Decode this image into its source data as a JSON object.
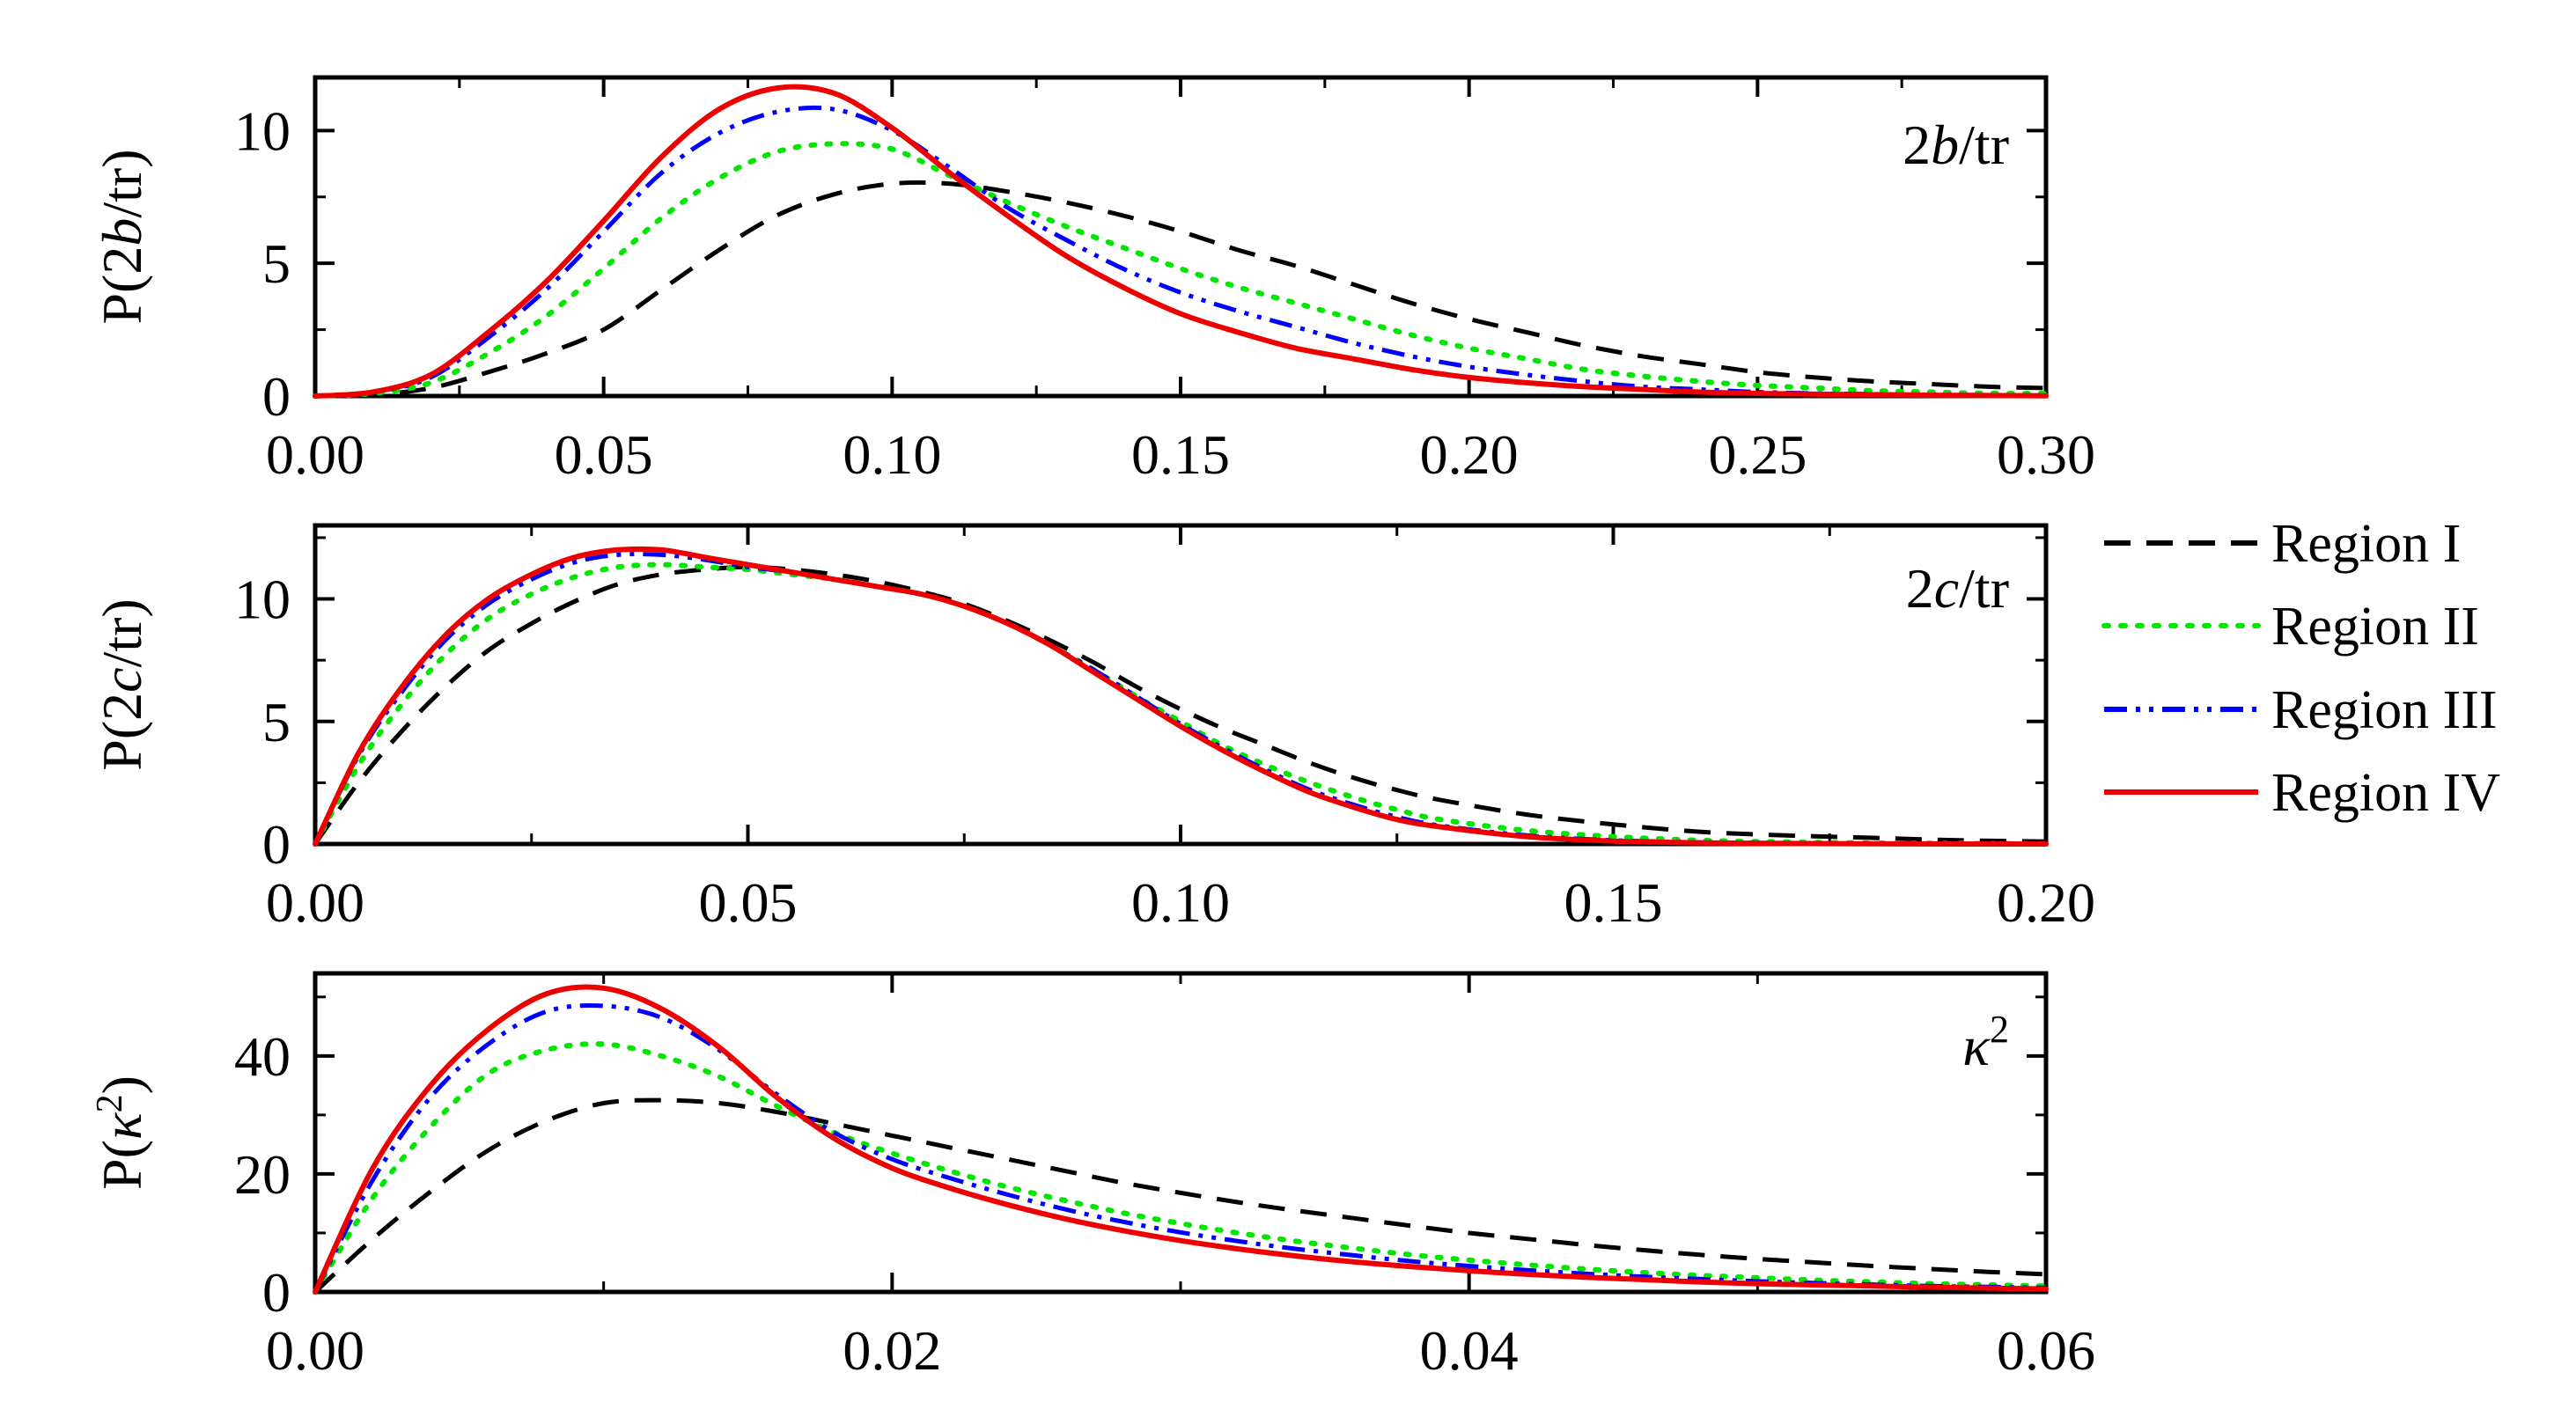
{
  "chart_data": [
    {
      "type": "line",
      "panel": "top",
      "ylabel": "P(2b/tr)",
      "tag": "2b/tr",
      "xlim": [
        0,
        0.3
      ],
      "ylim": [
        0,
        12
      ],
      "xticks": [
        0,
        0.05,
        0.1,
        0.15,
        0.2,
        0.25,
        0.3
      ],
      "xtick_labels": [
        "0.00",
        "0.05",
        "0.10",
        "0.15",
        "0.20",
        "0.25",
        "0.30"
      ],
      "yticks": [
        0,
        5,
        10
      ],
      "ytick_labels": [
        "0",
        "5",
        "10"
      ],
      "x": [
        0,
        0.01,
        0.02,
        0.03,
        0.04,
        0.05,
        0.06,
        0.07,
        0.08,
        0.09,
        0.1,
        0.11,
        0.12,
        0.13,
        0.14,
        0.15,
        0.16,
        0.17,
        0.18,
        0.19,
        0.2,
        0.21,
        0.22,
        0.23,
        0.24,
        0.25,
        0.26,
        0.27,
        0.28,
        0.29,
        0.3
      ],
      "series": [
        {
          "name": "Region I",
          "values": [
            0,
            0.05,
            0.3,
            0.9,
            1.6,
            2.5,
            4.0,
            5.5,
            6.8,
            7.6,
            8.0,
            8.0,
            7.7,
            7.3,
            6.8,
            6.2,
            5.5,
            4.9,
            4.2,
            3.5,
            2.9,
            2.4,
            1.9,
            1.5,
            1.2,
            0.9,
            0.7,
            0.55,
            0.45,
            0.35,
            0.3
          ]
        },
        {
          "name": "Region II",
          "values": [
            0,
            0.1,
            0.5,
            1.6,
            3.0,
            4.8,
            6.7,
            8.2,
            9.2,
            9.5,
            9.3,
            8.3,
            7.3,
            6.4,
            5.6,
            4.8,
            4.1,
            3.5,
            2.9,
            2.3,
            1.8,
            1.4,
            1.0,
            0.75,
            0.55,
            0.4,
            0.3,
            0.2,
            0.15,
            0.1,
            0.1
          ]
        },
        {
          "name": "Region III",
          "values": [
            0,
            0.15,
            0.7,
            2.2,
            4.0,
            6.2,
            8.4,
            9.9,
            10.7,
            10.8,
            10.0,
            8.6,
            7.1,
            5.9,
            4.8,
            3.9,
            3.2,
            2.6,
            2.0,
            1.5,
            1.1,
            0.8,
            0.55,
            0.35,
            0.25,
            0.15,
            0.1,
            0.07,
            0.05,
            0.03,
            0.02
          ]
        },
        {
          "name": "Region IV",
          "values": [
            0,
            0.15,
            0.8,
            2.4,
            4.3,
            6.6,
            9.0,
            10.8,
            11.6,
            11.4,
            10.1,
            8.4,
            6.8,
            5.3,
            4.1,
            3.1,
            2.4,
            1.8,
            1.4,
            1.0,
            0.7,
            0.5,
            0.35,
            0.25,
            0.15,
            0.1,
            0.07,
            0.05,
            0.03,
            0.02,
            0.01
          ]
        }
      ]
    },
    {
      "type": "line",
      "panel": "middle",
      "ylabel": "P(2c/tr)",
      "tag": "2c/tr",
      "xlim": [
        0,
        0.2
      ],
      "ylim": [
        0,
        13
      ],
      "xticks": [
        0,
        0.05,
        0.1,
        0.15,
        0.2
      ],
      "xtick_labels": [
        "0.00",
        "0.05",
        "0.10",
        "0.15",
        "0.20"
      ],
      "yticks": [
        0,
        5,
        10
      ],
      "ytick_labels": [
        "0",
        "5",
        "10"
      ],
      "x": [
        0,
        0.005,
        0.01,
        0.015,
        0.02,
        0.025,
        0.03,
        0.035,
        0.04,
        0.045,
        0.05,
        0.055,
        0.06,
        0.065,
        0.07,
        0.075,
        0.08,
        0.085,
        0.09,
        0.095,
        0.1,
        0.105,
        0.11,
        0.115,
        0.12,
        0.125,
        0.13,
        0.14,
        0.15,
        0.16,
        0.17,
        0.18,
        0.19,
        0.2
      ],
      "series": [
        {
          "name": "Region I",
          "values": [
            0,
            2.5,
            4.6,
            6.4,
            7.9,
            9.0,
            9.9,
            10.6,
            11.0,
            11.2,
            11.3,
            11.2,
            11.0,
            10.7,
            10.3,
            9.8,
            9.1,
            8.3,
            7.4,
            6.4,
            5.5,
            4.7,
            4.0,
            3.3,
            2.7,
            2.2,
            1.8,
            1.2,
            0.8,
            0.5,
            0.35,
            0.25,
            0.15,
            0.1
          ]
        },
        {
          "name": "Region II",
          "values": [
            0,
            3.2,
            5.7,
            7.7,
            9.2,
            10.2,
            10.9,
            11.3,
            11.4,
            11.3,
            11.2,
            11.0,
            10.8,
            10.5,
            10.2,
            9.7,
            9.0,
            8.1,
            7.1,
            6.0,
            5.0,
            4.0,
            3.2,
            2.5,
            1.9,
            1.4,
            1.0,
            0.55,
            0.3,
            0.15,
            0.08,
            0.04,
            0.02,
            0.01
          ]
        },
        {
          "name": "Region III",
          "values": [
            0,
            3.6,
            6.2,
            8.3,
            9.8,
            10.8,
            11.5,
            11.8,
            11.8,
            11.6,
            11.3,
            11.1,
            10.8,
            10.5,
            10.2,
            9.7,
            9.0,
            8.1,
            7.1,
            6.0,
            4.9,
            3.9,
            3.0,
            2.2,
            1.6,
            1.1,
            0.75,
            0.35,
            0.15,
            0.07,
            0.03,
            0.01,
            0.01,
            0
          ]
        },
        {
          "name": "Region IV",
          "values": [
            0,
            3.7,
            6.4,
            8.5,
            10.0,
            11.0,
            11.7,
            12.0,
            12.0,
            11.7,
            11.4,
            11.1,
            10.8,
            10.5,
            10.2,
            9.7,
            9.0,
            8.1,
            7.0,
            5.9,
            4.8,
            3.8,
            2.9,
            2.1,
            1.5,
            1.0,
            0.7,
            0.3,
            0.12,
            0.05,
            0.02,
            0.01,
            0,
            0
          ]
        }
      ]
    },
    {
      "type": "line",
      "panel": "bottom",
      "ylabel": "P(κ²)",
      "tag": "κ²",
      "xlim": [
        0,
        0.06
      ],
      "ylim": [
        0,
        54
      ],
      "xticks": [
        0,
        0.02,
        0.04,
        0.06
      ],
      "xtick_labels": [
        "0.00",
        "0.02",
        "0.04",
        "0.06"
      ],
      "yticks": [
        0,
        20,
        40
      ],
      "ytick_labels": [
        "0",
        "20",
        "40"
      ],
      "x": [
        0,
        0.002,
        0.004,
        0.006,
        0.008,
        0.01,
        0.012,
        0.014,
        0.016,
        0.018,
        0.02,
        0.022,
        0.024,
        0.026,
        0.028,
        0.03,
        0.032,
        0.034,
        0.036,
        0.038,
        0.04,
        0.042,
        0.044,
        0.046,
        0.048,
        0.05,
        0.052,
        0.054,
        0.056,
        0.058,
        0.06
      ],
      "series": [
        {
          "name": "Region I",
          "values": [
            0,
            9,
            17,
            24,
            29,
            32,
            32.5,
            32,
            30.5,
            28.5,
            26.5,
            24.5,
            22.5,
            20.5,
            18.5,
            16.8,
            15.2,
            13.8,
            12.5,
            11.2,
            10.0,
            9.0,
            8.0,
            7.1,
            6.3,
            5.6,
            5.0,
            4.4,
            3.9,
            3.4,
            3.0
          ]
        },
        {
          "name": "Region II",
          "values": [
            0,
            16,
            28,
            37,
            41,
            42,
            40,
            36.5,
            31.5,
            27,
            23.5,
            20.5,
            17.8,
            15.5,
            13.4,
            11.6,
            10.0,
            8.6,
            7.4,
            6.3,
            5.4,
            4.6,
            3.9,
            3.3,
            2.8,
            2.4,
            2.0,
            1.7,
            1.4,
            1.2,
            1.0
          ]
        },
        {
          "name": "Region III",
          "values": [
            0,
            19,
            33,
            42,
            47.5,
            48.5,
            46.5,
            41,
            33.5,
            27,
            22.5,
            19.3,
            16.5,
            14.0,
            11.9,
            10.1,
            8.6,
            7.3,
            6.2,
            5.2,
            4.4,
            3.7,
            3.1,
            2.6,
            2.2,
            1.8,
            1.5,
            1.25,
            1.0,
            0.85,
            0.7
          ]
        },
        {
          "name": "Region IV",
          "values": [
            0,
            21,
            35,
            44.5,
            50.5,
            51.5,
            48,
            41.5,
            33,
            26,
            21,
            17.6,
            14.8,
            12.4,
            10.4,
            8.7,
            7.3,
            6.1,
            5.1,
            4.3,
            3.6,
            3.0,
            2.5,
            2.1,
            1.7,
            1.4,
            1.2,
            1.0,
            0.8,
            0.65,
            0.5
          ]
        }
      ]
    }
  ],
  "legend": [
    {
      "name": "Region I",
      "label": "Region I",
      "color": "#000000",
      "dash": "dashed"
    },
    {
      "name": "Region II",
      "label": "Region II",
      "color": "#00e600",
      "dash": "dotted"
    },
    {
      "name": "Region III",
      "label": "Region III",
      "color": "#0000ff",
      "dash": "dash-dot-dot"
    },
    {
      "name": "Region IV",
      "label": "Region IV",
      "color": "#ee0000",
      "dash": "solid"
    }
  ],
  "panel_tags": {
    "top": {
      "prefix": "2",
      "italic": "b",
      "suffix": "/tr"
    },
    "middle": {
      "prefix": "2",
      "italic": "c",
      "suffix": "/tr"
    },
    "bottom": {
      "italic": "κ",
      "sup": "2"
    }
  },
  "ylabels": {
    "top": {
      "prefix": "P(2",
      "italic": "b",
      "suffix": "/tr)"
    },
    "middle": {
      "prefix": "P(2",
      "italic": "c",
      "suffix": "/tr)"
    },
    "bottom": {
      "prefix": "P(",
      "italic": "κ",
      "sup": "2",
      "suffix": ")"
    }
  }
}
